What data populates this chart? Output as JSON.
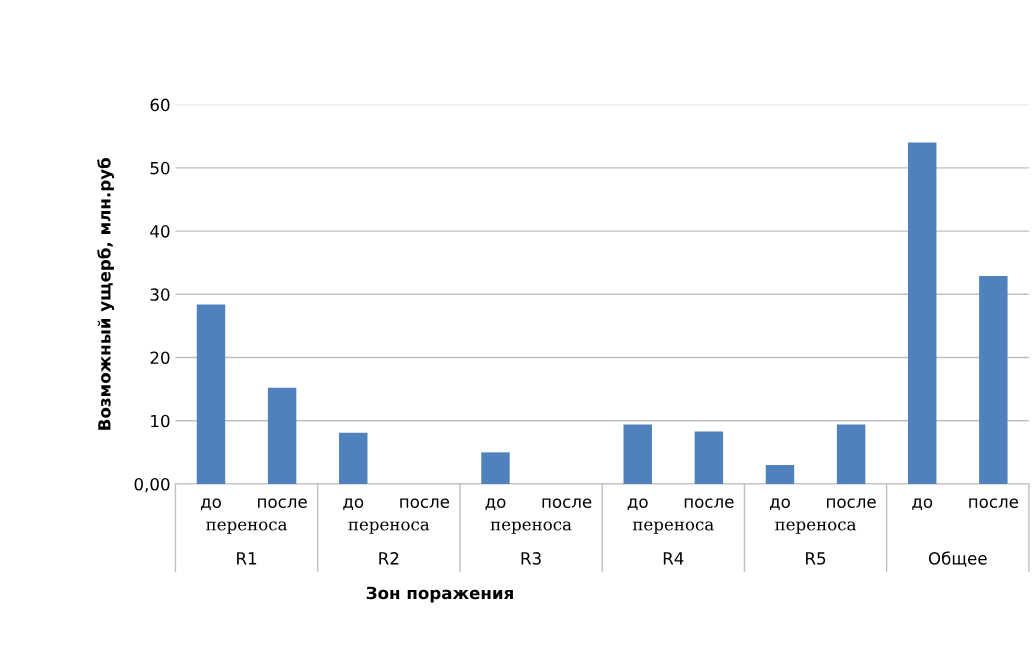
{
  "chart_data": {
    "type": "bar",
    "xlabel": "Зон поражения",
    "ylabel": "Возможный ущерб, млн.руб",
    "categories": [
      "до",
      "после",
      "до",
      "после",
      "до",
      "после",
      "до",
      "после",
      "до",
      "после",
      "до",
      "после"
    ],
    "values": [
      28.4,
      15.2,
      8.1,
      0,
      5.0,
      0,
      9.4,
      8.3,
      3.0,
      9.4,
      54.0,
      32.9
    ],
    "color": "#4f81bd",
    "ylim": [
      0,
      60
    ],
    "yticks": [
      {
        "value": 0,
        "label": "0,00"
      },
      10,
      20,
      30,
      40,
      50,
      60
    ],
    "grid": "y",
    "annotations": [
      "переноса",
      "переноса",
      "переноса",
      "переноса",
      "переноса",
      "R1",
      "R2",
      "R3",
      "R4",
      "R5",
      "Общее"
    ]
  }
}
